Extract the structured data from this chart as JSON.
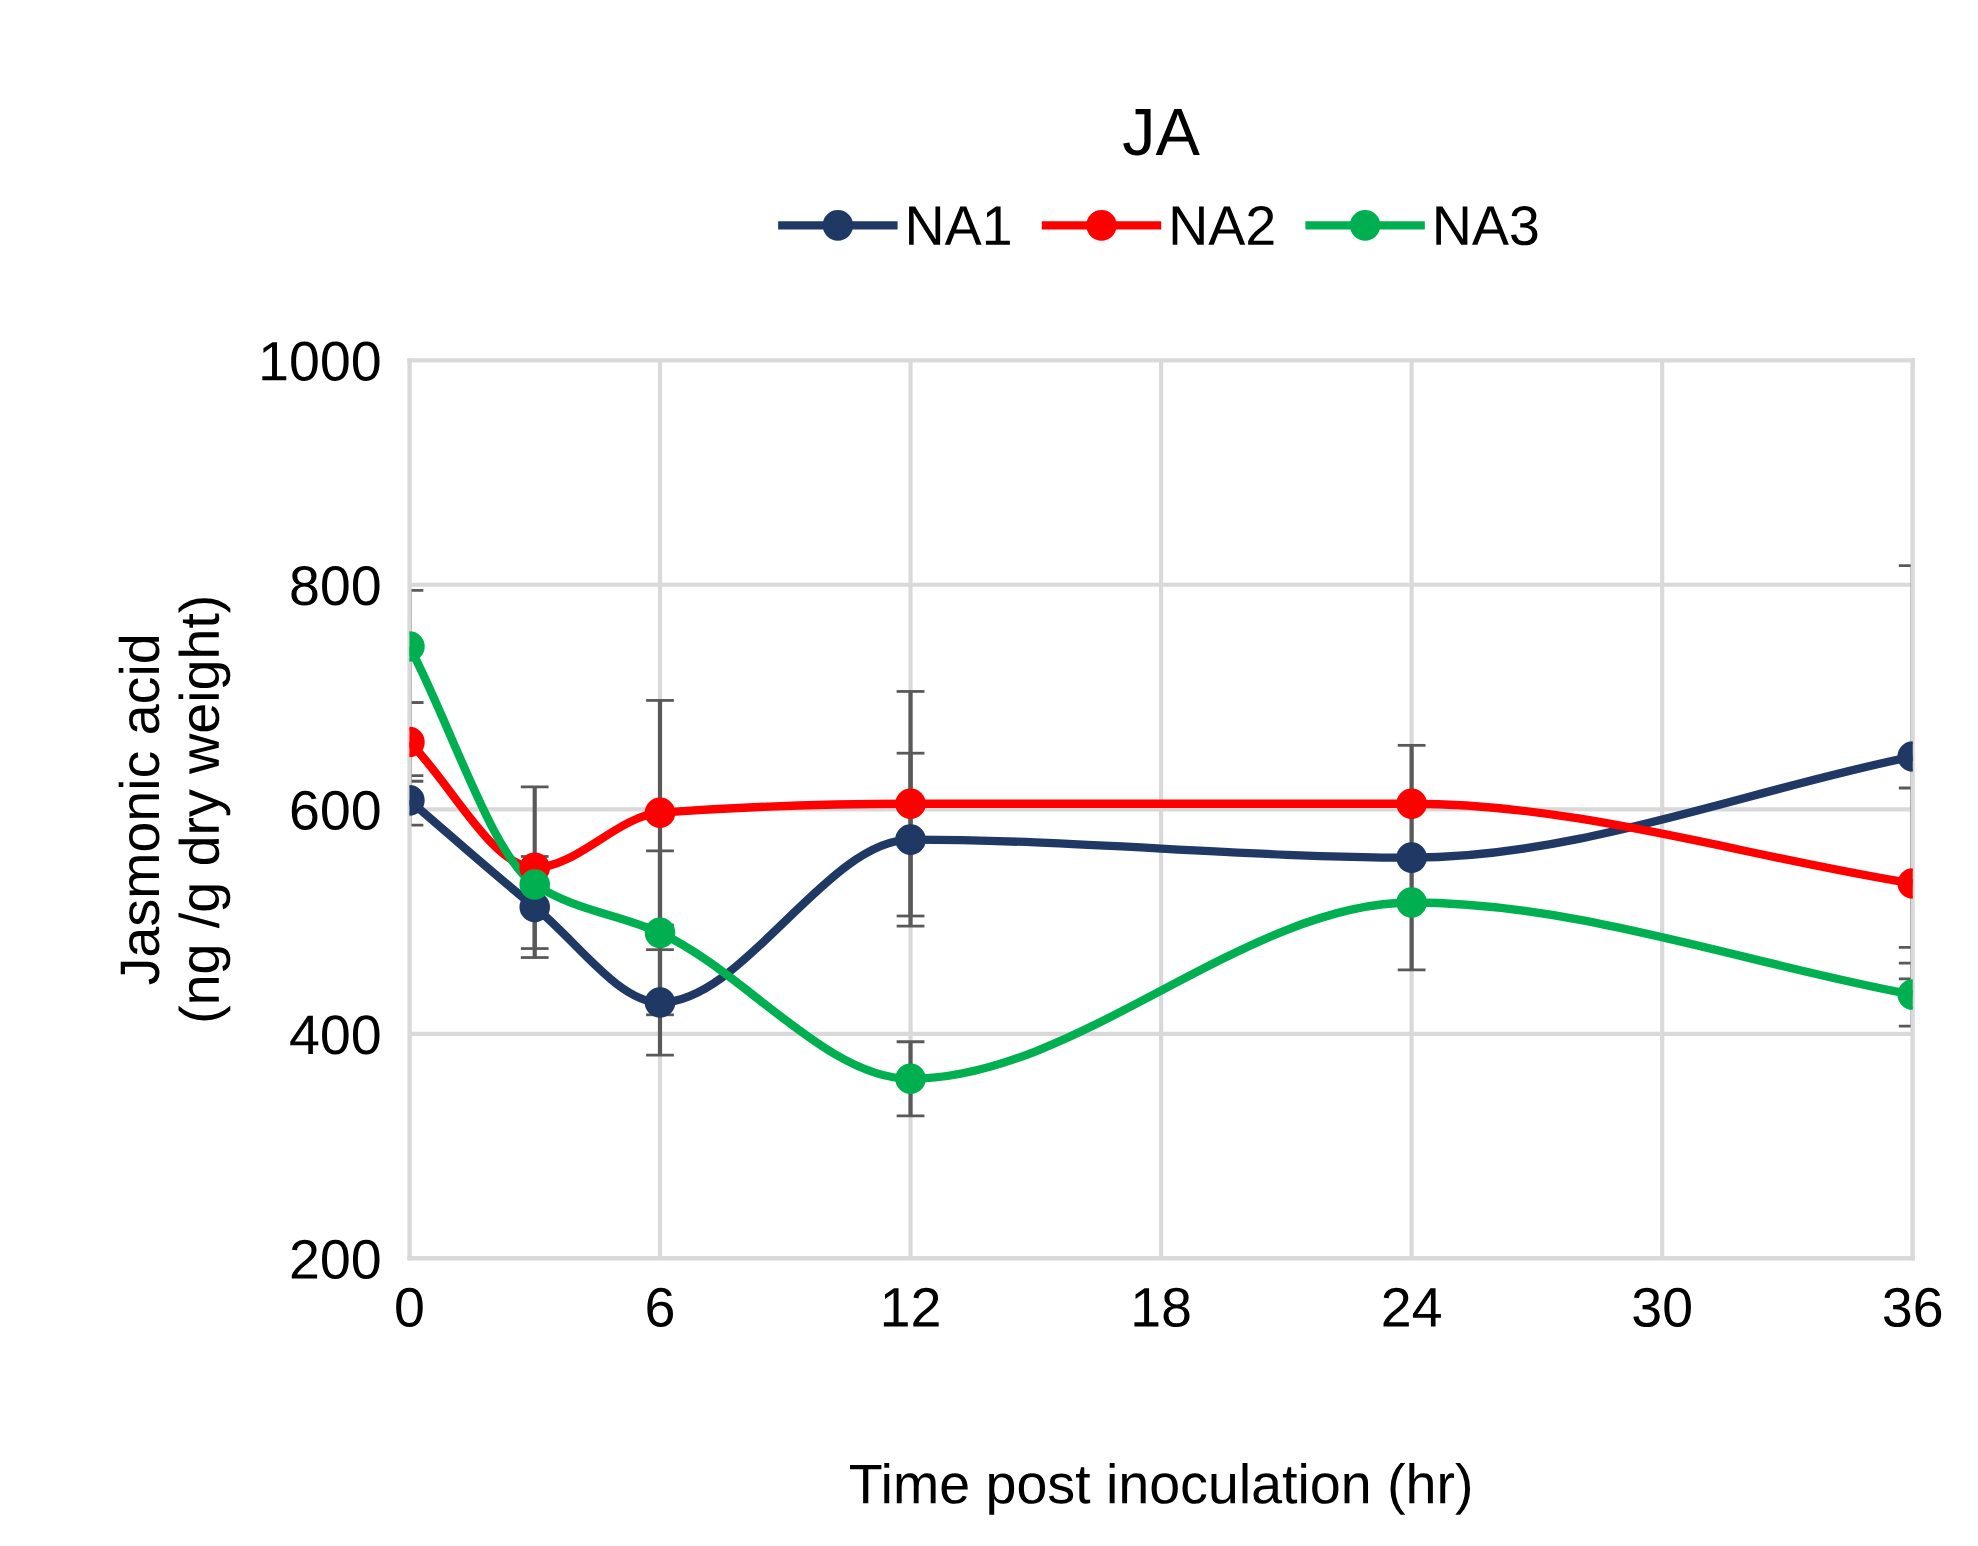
{
  "chart_data": {
    "type": "line",
    "title": "JA",
    "xlabel": "Time post inoculation (hr)",
    "ylabel": "Jasmonic acid\n(ng /g dry weight)",
    "x": [
      0,
      3,
      6,
      12,
      24,
      36
    ],
    "series": [
      {
        "name": "NA1",
        "color": "#1f3864",
        "values": [
          608,
          513,
          428,
          573,
          557,
          647
        ],
        "errors": [
          22,
          45,
          47,
          77,
          100,
          170
        ]
      },
      {
        "name": "NA2",
        "color": "#ff0000",
        "values": [
          660,
          548,
          597,
          605,
          605,
          534
        ],
        "errors": [
          35,
          72,
          100,
          100,
          null,
          85
        ]
      },
      {
        "name": "NA3",
        "color": "#00b050",
        "values": [
          745,
          533,
          490,
          360,
          517,
          435
        ],
        "errors": [
          50,
          null,
          73,
          33,
          null,
          28
        ]
      }
    ],
    "xlim": [
      0,
      36
    ],
    "xticks": [
      0,
      6,
      12,
      18,
      24,
      30,
      36
    ],
    "ylim": [
      200,
      1000
    ],
    "yticks": [
      200,
      400,
      600,
      800,
      1000
    ],
    "grid": true,
    "legend": "top",
    "marker": "circle",
    "line_style": "solid"
  }
}
